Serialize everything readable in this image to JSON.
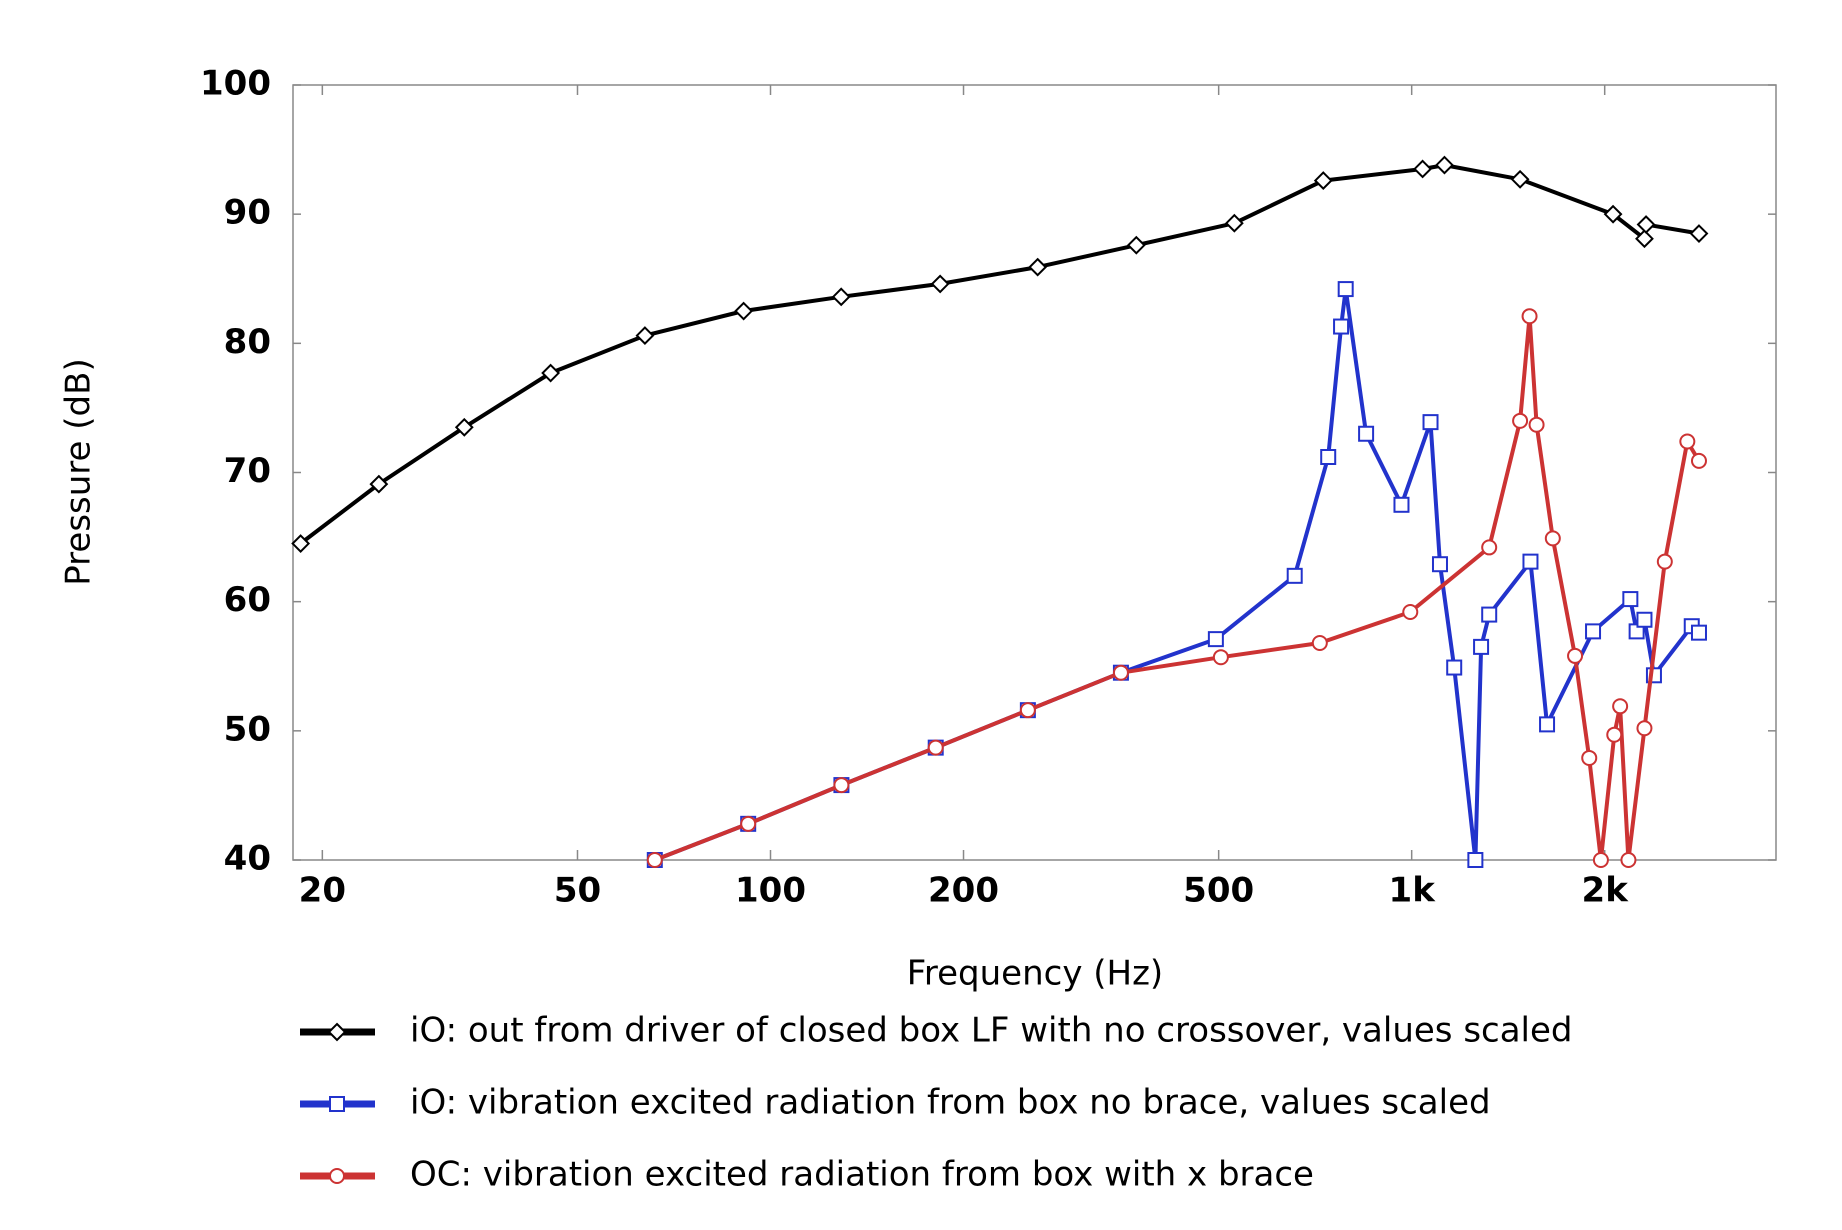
{
  "chart_data": {
    "type": "line",
    "xlabel": "Frequency  (Hz)",
    "ylabel": "Pressure  (dB)",
    "xscale": "log",
    "xlim": [
      18,
      3700
    ],
    "ylim": [
      40,
      100
    ],
    "xticks": [
      20,
      50,
      100,
      200,
      500,
      {
        "value": 1000,
        "label": "1k"
      },
      {
        "value": 2000,
        "label": "2k"
      }
    ],
    "yticks": [
      40,
      50,
      60,
      70,
      80,
      90,
      100
    ],
    "series": [
      {
        "name": "iO: out from driver of closed box LF with no crossover, values scaled",
        "color": "#000000",
        "marker": "diamond",
        "x": [
          18.5,
          24.5,
          33.3,
          45.4,
          63.7,
          90.8,
          128.9,
          183.9,
          261,
          372,
          529,
          728,
          1040,
          1125,
          1476,
          2061,
          2307,
          2320,
          2806
        ],
        "values": [
          64.5,
          69.1,
          73.5,
          77.7,
          80.6,
          82.5,
          83.6,
          84.6,
          85.9,
          87.6,
          89.3,
          92.6,
          93.5,
          93.8,
          92.7,
          90.0,
          88.1,
          89.2,
          88.5
        ]
      },
      {
        "name": "iO: vibration excited radiation from box no brace, values scaled",
        "color": "#2233cc",
        "marker": "square",
        "x": [
          66,
          92.3,
          129,
          181,
          252,
          352,
          495,
          657,
          741,
          776,
          789,
          849,
          964,
          1070,
          1107,
          1165,
          1257,
          1283,
          1321,
          1532,
          1626,
          1918,
          2193,
          2243,
          2307,
          2387,
          2734,
          2806
        ],
        "values": [
          40,
          42.8,
          45.8,
          48.7,
          51.6,
          54.5,
          57.1,
          62.0,
          71.2,
          81.3,
          84.2,
          73.0,
          67.5,
          73.9,
          62.9,
          54.9,
          40,
          56.5,
          59.0,
          63.1,
          50.5,
          57.7,
          60.2,
          57.7,
          58.6,
          54.3,
          58.1,
          57.6
        ]
      },
      {
        "name": "OC: vibration excited radiation from box with x brace",
        "color": "#cc3333",
        "marker": "circle",
        "x": [
          66,
          92.3,
          129,
          181,
          252,
          352,
          504,
          719,
          995,
          1321,
          1476,
          1527,
          1566,
          1660,
          1798,
          1892,
          1973,
          2070,
          2114,
          2178,
          2307,
          2482,
          2691,
          2806
        ],
        "values": [
          40,
          42.8,
          45.8,
          48.7,
          51.6,
          54.5,
          55.7,
          56.8,
          59.2,
          64.2,
          74.0,
          82.1,
          73.7,
          64.9,
          55.8,
          47.9,
          40,
          49.7,
          51.9,
          40,
          50.2,
          63.1,
          72.4,
          70.9
        ]
      }
    ]
  }
}
